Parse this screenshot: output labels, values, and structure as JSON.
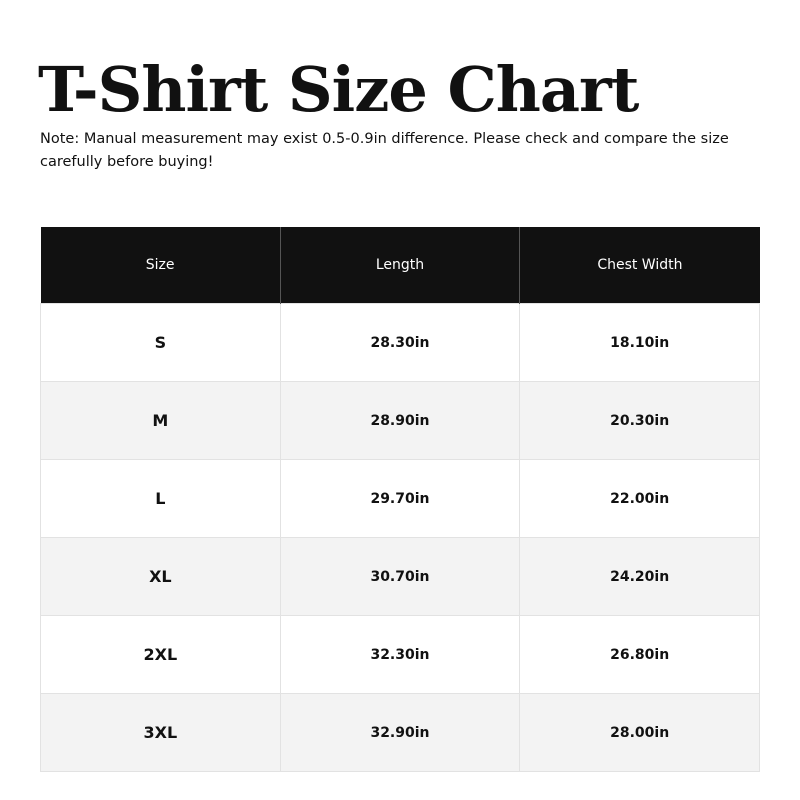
{
  "title": "T-Shirt Size Chart",
  "note": "Note: Manual measurement may exist 0.5-0.9in difference. Please check and compare the size carefully before buying!",
  "table": {
    "headers": [
      "Size",
      "Length",
      "Chest Width"
    ],
    "rows": [
      [
        "S",
        "28.30in",
        "18.10in"
      ],
      [
        "M",
        "28.90in",
        "20.30in"
      ],
      [
        "L",
        "29.70in",
        "22.00in"
      ],
      [
        "XL",
        "30.70in",
        "24.20in"
      ],
      [
        "2XL",
        "32.30in",
        "26.80in"
      ],
      [
        "3XL",
        "32.90in",
        "28.00in"
      ]
    ]
  },
  "colors": {
    "header_bg": "#111111",
    "header_text": "#ffffff",
    "alt_row_bg": "#f3f3f3"
  }
}
